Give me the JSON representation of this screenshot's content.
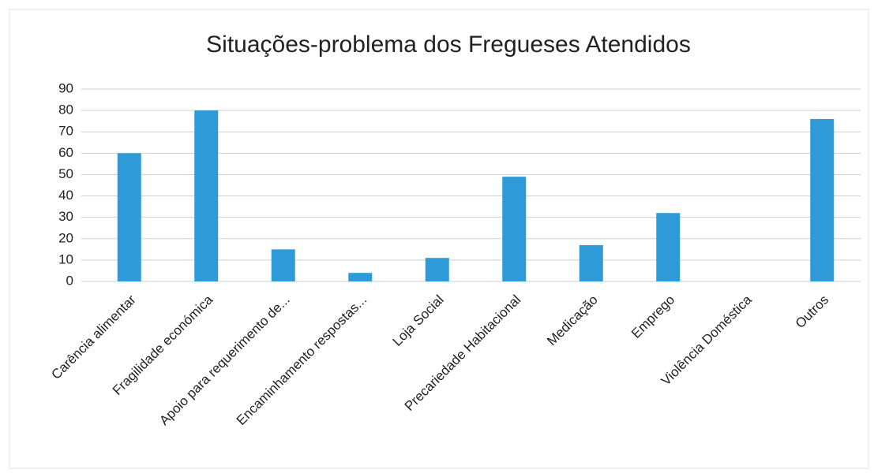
{
  "chart_data": {
    "type": "bar",
    "title": "Situações-problema dos Fregueses Atendidos",
    "categories": [
      "Carência alimentar",
      "Fragilidade económica",
      "Apoio para requerimento de...",
      "Encaminhamento respostas...",
      "Loja Social",
      "Precariedade Habitacional",
      "Medicação",
      "Emprego",
      "Violência Doméstica",
      "Outros"
    ],
    "values": [
      60,
      80,
      15,
      4,
      11,
      49,
      17,
      32,
      0,
      76
    ],
    "color": "#2e9ad8",
    "ylim": [
      0,
      90
    ],
    "yticks": [
      0,
      10,
      20,
      30,
      40,
      50,
      60,
      70,
      80,
      90
    ],
    "grid": true
  }
}
